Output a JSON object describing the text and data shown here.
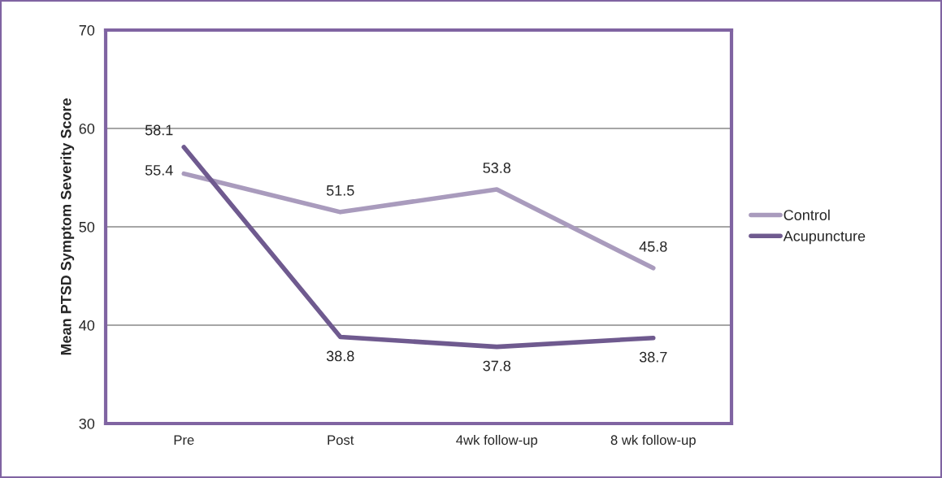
{
  "chart_data": {
    "type": "line",
    "ylabel": "Mean PTSD Symptom Severity Score",
    "categories": [
      "Pre",
      "Post",
      "4wk follow-up",
      "8 wk follow-up"
    ],
    "series": [
      {
        "name": "Control",
        "color": "#a99bbd",
        "values": [
          55.4,
          51.5,
          53.8,
          45.8
        ]
      },
      {
        "name": "Acupuncture",
        "color": "#6f5a8f",
        "values": [
          58.1,
          38.8,
          37.8,
          38.7
        ]
      }
    ],
    "ylim": [
      30,
      70
    ],
    "yticks": [
      30,
      40,
      50,
      60,
      70
    ],
    "grid": "y",
    "legend": "right",
    "data_labels": true,
    "marker": "none",
    "line_style": "solid"
  }
}
